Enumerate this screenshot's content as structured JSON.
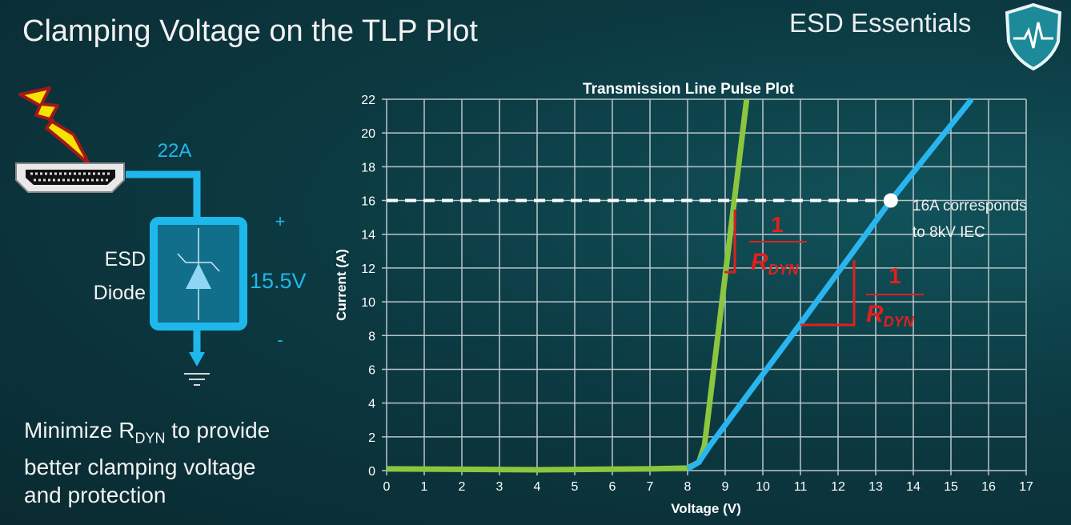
{
  "slide": {
    "title": "Clamping Voltage on the TLP Plot",
    "brand": "ESD Essentials",
    "caption_pre": "Minimize R",
    "caption_sub": "DYN",
    "caption_post1": " to provide",
    "caption_line2": "better clamping voltage",
    "caption_line3": "and protection"
  },
  "circuit": {
    "current_label": "22A",
    "device_label_line1": "ESD",
    "device_label_line2": "Diode",
    "voltage_label": "15.5V",
    "plus": "+",
    "minus": "-",
    "wire_color": "#1fb8ec"
  },
  "annotations": {
    "point_label_line1": "16A corresponds",
    "point_label_line2": "to 8kV IEC",
    "slope_numerator": "1",
    "slope_denominator": "R",
    "slope_denominator_sub": "DYN",
    "slope_color": "#e0201c"
  },
  "chart_data": {
    "type": "line",
    "title": "Transmission Line Pulse Plot",
    "xlabel": "Voltage (V)",
    "ylabel": "Current (A)",
    "xlim": [
      0,
      17
    ],
    "ylim": [
      0,
      22
    ],
    "xticks": [
      0,
      1,
      2,
      3,
      4,
      5,
      6,
      7,
      8,
      9,
      10,
      11,
      12,
      13,
      14,
      15,
      16,
      17
    ],
    "yticks": [
      0,
      2,
      4,
      6,
      8,
      10,
      12,
      14,
      16,
      18,
      20,
      22
    ],
    "grid": true,
    "series": [
      {
        "color": "#8cc63f",
        "points": [
          [
            0,
            0.1
          ],
          [
            4,
            0.05
          ],
          [
            7,
            0.1
          ],
          [
            8,
            0.15
          ],
          [
            8.3,
            0.5
          ],
          [
            8.45,
            1.5
          ],
          [
            9.57,
            22
          ]
        ]
      },
      {
        "color": "#29b6f0",
        "points": [
          [
            8,
            0.1
          ],
          [
            8.3,
            0.5
          ],
          [
            8.6,
            1.5
          ],
          [
            11,
            8.7
          ],
          [
            13.4,
            16
          ],
          [
            15.55,
            22
          ]
        ]
      }
    ],
    "reference_line": {
      "y": 16,
      "style": "dashed",
      "color": "#ffffff"
    },
    "marked_point": [
      13.4,
      16
    ]
  }
}
